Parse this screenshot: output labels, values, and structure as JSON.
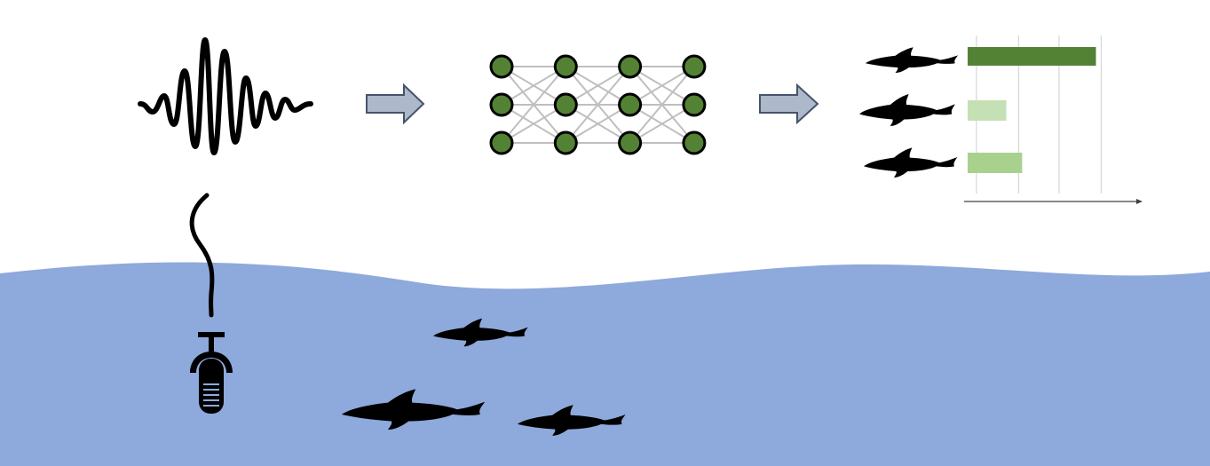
{
  "colors": {
    "sea": "#8EA9DB",
    "node_fill": "#548235",
    "node_stroke": "#000000",
    "edge": "#BFBFBF",
    "arrow_fill": "#ADB9CA",
    "arrow_stroke": "#44546A",
    "silhouette": "#000000"
  },
  "icons": {
    "waveform": "sound-waveform-icon",
    "neural_net": "neural-network-icon",
    "hydrophone": "hydrophone-icon",
    "dolphin": "dolphin-silhouette-icon"
  },
  "network": {
    "layers": 4,
    "nodes_per_layer": 3
  },
  "chart_data": {
    "type": "bar",
    "orientation": "horizontal",
    "title": "",
    "xlabel": "",
    "ylabel": "",
    "categories": [
      "dolphin-1",
      "dolphin-2",
      "dolphin-3"
    ],
    "values": [
      0.73,
      0.22,
      0.31
    ],
    "xlim": [
      0,
      1
    ],
    "grid": true,
    "bar_colors": [
      "#548235",
      "#C5E0B4",
      "#A9D18E"
    ]
  }
}
